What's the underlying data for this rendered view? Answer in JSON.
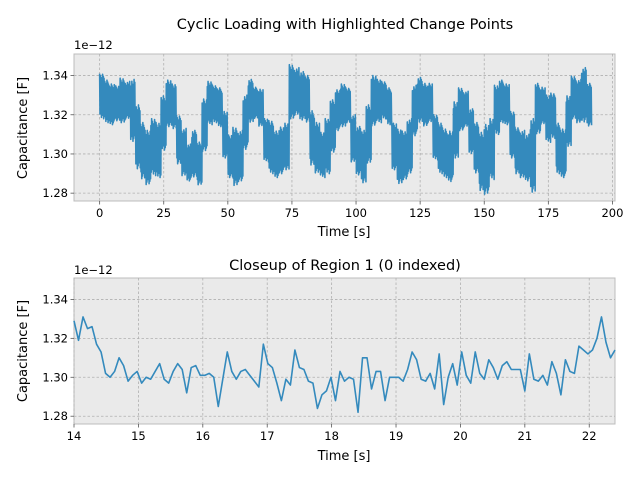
{
  "chart_data": [
    {
      "type": "line",
      "title": "Cyclic Loading with Highlighted Change Points",
      "xlabel": "Time [s]",
      "ylabel": "Capacitance [F]",
      "y_offset_label": "1e−12",
      "xlim": [
        -10,
        201
      ],
      "ylim": [
        1.276,
        1.351
      ],
      "xticks": [
        0,
        25,
        50,
        75,
        100,
        125,
        150,
        175,
        200
      ],
      "yticks": [
        1.28,
        1.3,
        1.32,
        1.34
      ],
      "ytick_labels": [
        "1.28",
        "1.30",
        "1.32",
        "1.34"
      ],
      "grid": true,
      "series": [
        {
          "color": "#348abd",
          "x": [
            0,
            2,
            4,
            6,
            8,
            10,
            12,
            14,
            16,
            18,
            20,
            22,
            24,
            26,
            28,
            30,
            32,
            34,
            36,
            38,
            40,
            42,
            44,
            46,
            48,
            50,
            52,
            54,
            56,
            58,
            60,
            62,
            64,
            66,
            68,
            70,
            72,
            74,
            76,
            78,
            80,
            82,
            84,
            86,
            88,
            90,
            92,
            94,
            96,
            98,
            100,
            102,
            104,
            106,
            108,
            110,
            112,
            114,
            116,
            118,
            120,
            122,
            124,
            126,
            128,
            130,
            132,
            134,
            136,
            138,
            140,
            142,
            144,
            146,
            148,
            150,
            152,
            154,
            156,
            158,
            160,
            162,
            164,
            166,
            168,
            170,
            172,
            174,
            176,
            178,
            180,
            182,
            184,
            186,
            188,
            190
          ],
          "y_high": [
            1.341,
            1.338,
            1.336,
            1.335,
            1.339,
            1.337,
            1.338,
            1.325,
            1.316,
            1.312,
            1.318,
            1.316,
            1.33,
            1.338,
            1.336,
            1.32,
            1.313,
            1.305,
            1.312,
            1.306,
            1.328,
            1.337,
            1.335,
            1.334,
            1.322,
            1.31,
            1.314,
            1.312,
            1.33,
            1.338,
            1.334,
            1.333,
            1.318,
            1.317,
            1.312,
            1.314,
            1.316,
            1.346,
            1.344,
            1.342,
            1.34,
            1.322,
            1.316,
            1.311,
            1.318,
            1.328,
            1.333,
            1.336,
            1.334,
            1.32,
            1.314,
            1.312,
            1.325,
            1.34,
            1.338,
            1.337,
            1.334,
            1.316,
            1.313,
            1.312,
            1.318,
            1.335,
            1.339,
            1.336,
            1.336,
            1.32,
            1.316,
            1.313,
            1.312,
            1.327,
            1.334,
            1.332,
            1.323,
            1.316,
            1.311,
            1.315,
            1.318,
            1.335,
            1.338,
            1.336,
            1.322,
            1.314,
            1.312,
            1.31,
            1.318,
            1.336,
            1.334,
            1.33,
            1.331,
            1.316,
            1.313,
            1.33,
            1.34,
            1.338,
            1.344,
            1.336
          ],
          "y_low": [
            1.318,
            1.316,
            1.315,
            1.317,
            1.316,
            1.318,
            1.306,
            1.292,
            1.287,
            1.284,
            1.289,
            1.288,
            1.302,
            1.314,
            1.313,
            1.295,
            1.289,
            1.286,
            1.288,
            1.284,
            1.301,
            1.315,
            1.316,
            1.314,
            1.298,
            1.288,
            1.284,
            1.286,
            1.302,
            1.316,
            1.318,
            1.314,
            1.296,
            1.29,
            1.288,
            1.29,
            1.292,
            1.318,
            1.32,
            1.317,
            1.316,
            1.294,
            1.29,
            1.288,
            1.29,
            1.301,
            1.312,
            1.314,
            1.316,
            1.296,
            1.289,
            1.285,
            1.295,
            1.314,
            1.316,
            1.318,
            1.315,
            1.292,
            1.285,
            1.287,
            1.29,
            1.309,
            1.316,
            1.314,
            1.316,
            1.297,
            1.29,
            1.288,
            1.286,
            1.298,
            1.312,
            1.314,
            1.3,
            1.29,
            1.281,
            1.279,
            1.287,
            1.31,
            1.316,
            1.315,
            1.298,
            1.29,
            1.288,
            1.286,
            1.28,
            1.31,
            1.315,
            1.306,
            1.308,
            1.29,
            1.288,
            1.304,
            1.318,
            1.316,
            1.316,
            1.314
          ]
        }
      ]
    },
    {
      "type": "line",
      "title": "Closeup of Region 1 (0 indexed)",
      "xlabel": "Time [s]",
      "ylabel": "Capacitance [F]",
      "y_offset_label": "1e−12",
      "xlim": [
        14,
        22.4
      ],
      "ylim": [
        1.276,
        1.351
      ],
      "xticks": [
        14,
        15,
        16,
        17,
        18,
        19,
        20,
        21,
        22
      ],
      "yticks": [
        1.28,
        1.3,
        1.32,
        1.34
      ],
      "ytick_labels": [
        "1.28",
        "1.30",
        "1.32",
        "1.34"
      ],
      "grid": true,
      "series": [
        {
          "color": "#348abd",
          "x": [
            14.0,
            14.07,
            14.14,
            14.21,
            14.28,
            14.35,
            14.42,
            14.49,
            14.56,
            14.63,
            14.7,
            14.77,
            14.84,
            14.91,
            14.98,
            15.05,
            15.12,
            15.19,
            15.26,
            15.33,
            15.4,
            15.47,
            15.54,
            15.61,
            15.68,
            15.75,
            15.82,
            15.89,
            15.96,
            16.03,
            16.1,
            16.17,
            16.24,
            16.31,
            16.38,
            16.45,
            16.52,
            16.59,
            16.66,
            16.73,
            16.8,
            16.87,
            16.94,
            17.01,
            17.08,
            17.15,
            17.22,
            17.29,
            17.36,
            17.43,
            17.5,
            17.57,
            17.64,
            17.71,
            17.78,
            17.85,
            17.92,
            17.99,
            18.06,
            18.13,
            18.2,
            18.27,
            18.34,
            18.41,
            18.48,
            18.55,
            18.62,
            18.69,
            18.76,
            18.83,
            18.9,
            18.97,
            19.04,
            19.11,
            19.18,
            19.25,
            19.32,
            19.39,
            19.46,
            19.53,
            19.6,
            19.67,
            19.74,
            19.81,
            19.88,
            19.95,
            20.02,
            20.09,
            20.16,
            20.23,
            20.3,
            20.37,
            20.44,
            20.51,
            20.58,
            20.65,
            20.72,
            20.79,
            20.86,
            20.93,
            21.0,
            21.07,
            21.14,
            21.21,
            21.28,
            21.35,
            21.42,
            21.49,
            21.56,
            21.63,
            21.7,
            21.77,
            21.84,
            21.91,
            21.98,
            22.05,
            22.12,
            22.19,
            22.26,
            22.33,
            22.4
          ],
          "y": [
            1.329,
            1.319,
            1.331,
            1.325,
            1.326,
            1.317,
            1.313,
            1.302,
            1.3,
            1.303,
            1.31,
            1.306,
            1.298,
            1.301,
            1.303,
            1.297,
            1.3,
            1.299,
            1.303,
            1.307,
            1.299,
            1.297,
            1.303,
            1.307,
            1.304,
            1.292,
            1.305,
            1.306,
            1.301,
            1.301,
            1.302,
            1.3,
            1.285,
            1.299,
            1.313,
            1.303,
            1.299,
            1.303,
            1.304,
            1.301,
            1.298,
            1.295,
            1.317,
            1.307,
            1.305,
            1.297,
            1.288,
            1.299,
            1.296,
            1.314,
            1.305,
            1.304,
            1.298,
            1.297,
            1.284,
            1.291,
            1.293,
            1.3,
            1.288,
            1.303,
            1.298,
            1.3,
            1.299,
            1.282,
            1.31,
            1.31,
            1.294,
            1.303,
            1.303,
            1.288,
            1.3,
            1.3,
            1.3,
            1.298,
            1.304,
            1.313,
            1.309,
            1.299,
            1.298,
            1.302,
            1.294,
            1.312,
            1.286,
            1.3,
            1.307,
            1.296,
            1.313,
            1.301,
            1.297,
            1.313,
            1.302,
            1.299,
            1.309,
            1.305,
            1.299,
            1.306,
            1.308,
            1.304,
            1.304,
            1.304,
            1.293,
            1.312,
            1.299,
            1.298,
            1.301,
            1.296,
            1.308,
            1.302,
            1.291,
            1.309,
            1.303,
            1.302,
            1.316,
            1.314,
            1.312,
            1.314,
            1.32,
            1.331,
            1.318,
            1.31,
            1.314
          ]
        }
      ]
    }
  ]
}
